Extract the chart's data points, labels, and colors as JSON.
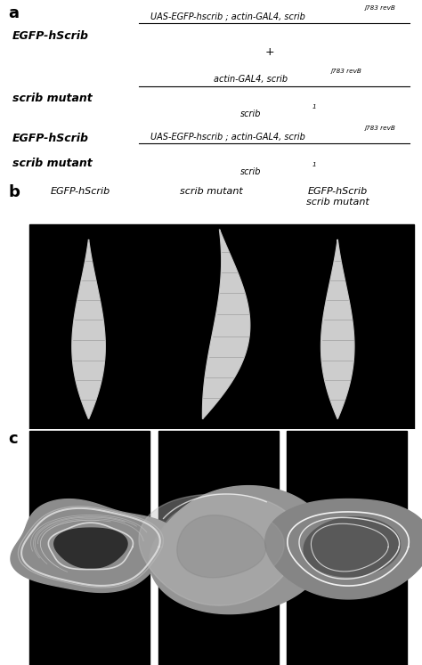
{
  "panel_a_label": "a",
  "panel_b_label": "b",
  "panel_c_label": "c",
  "col_labels": [
    "EGFP-hScrib",
    "scrib mutant",
    "EGFP-hScrib\nscrib mutant"
  ],
  "background_color": "#ffffff",
  "text_color": "#000000",
  "image_bg": "#000000",
  "row1_left": "EGFP-hScrib",
  "row2_left": "scrib mutant",
  "row3_left1": "EGFP-hScrib",
  "row3_left2": "scrib mutant",
  "numerator1": "UAS-EGFP-hscrib ; actin-GAL4, scrib",
  "numerator1_sup": "j783 revB",
  "denom1": "+",
  "numerator2": "actin-GAL4, scrib",
  "numerator2_sup": "j783 revB",
  "denom2": "scrib",
  "denom2_sup": "1",
  "numerator3": "UAS-EGFP-hscrib ; actin-GAL4, scrib",
  "numerator3_sup": "j783 revB",
  "denom3": "scrib",
  "denom3_sup": "1"
}
